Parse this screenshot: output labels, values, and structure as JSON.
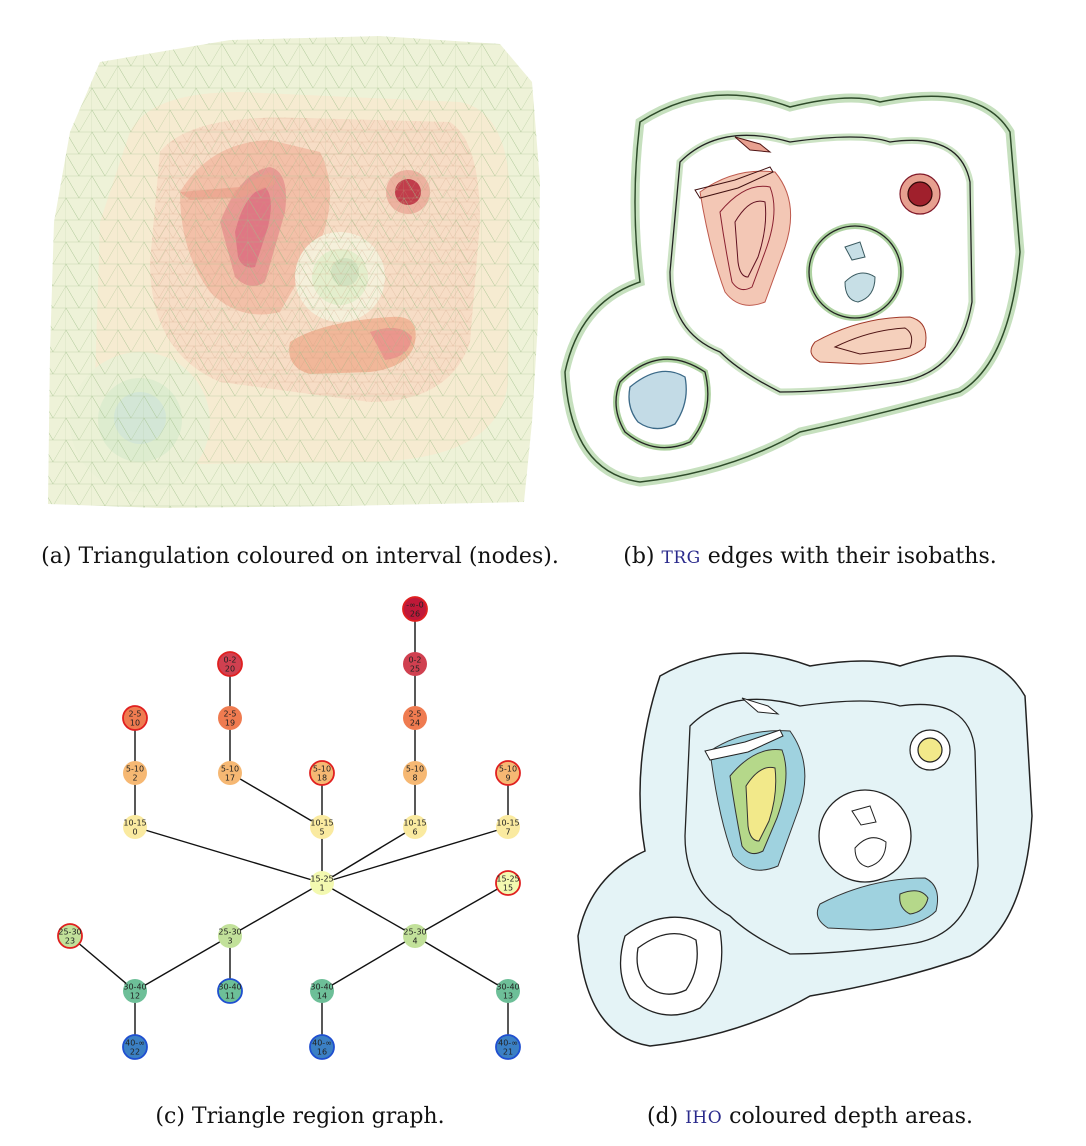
{
  "captions": {
    "a": "(a) Triangulation coloured on interval (nodes).",
    "b_pre": "(b) ",
    "b_sc": "TRG",
    "b_post": " edges with their isobaths.",
    "c": "(c) Triangle region graph.",
    "d_pre": "(d) ",
    "d_sc": "IHO",
    "d_post": " coloured depth areas."
  },
  "colors": {
    "interval_0_2": "#d04050",
    "interval_2_5": "#ef7b50",
    "interval_5_10": "#f6b873",
    "interval_10_15": "#faeaa0",
    "interval_15_25": "#f3f9b0",
    "interval_25_30": "#c2e19a",
    "interval_30_40": "#6dbf98",
    "interval_40_inf": "#3b80c4",
    "interval_neg": "#c01838",
    "leaf_border": "#e02020",
    "deep_border": "#1f4fd0",
    "iho_shallow": "#f2e98a",
    "iho_mid": "#b5d88a",
    "iho_deep": "#9fd2df",
    "iho_base": "#e4f3f6"
  },
  "graph": {
    "nodes": [
      {
        "id": "0",
        "label": "10-15",
        "num": "0"
      },
      {
        "id": "1",
        "label": "15-25",
        "num": "1"
      },
      {
        "id": "2",
        "label": "5-10",
        "num": "2"
      },
      {
        "id": "3",
        "label": "25-30",
        "num": "3"
      },
      {
        "id": "4",
        "label": "25-30",
        "num": "4"
      },
      {
        "id": "5",
        "label": "10-15",
        "num": "5"
      },
      {
        "id": "6",
        "label": "10-15",
        "num": "6"
      },
      {
        "id": "7",
        "label": "10-15",
        "num": "7"
      },
      {
        "id": "8",
        "label": "5-10",
        "num": "8"
      },
      {
        "id": "9",
        "label": "5-10",
        "num": "9"
      },
      {
        "id": "10",
        "label": "2-5",
        "num": "10"
      },
      {
        "id": "11",
        "label": "30-40",
        "num": "11"
      },
      {
        "id": "12",
        "label": "30-40",
        "num": "12"
      },
      {
        "id": "13",
        "label": "30-40",
        "num": "13"
      },
      {
        "id": "14",
        "label": "30-40",
        "num": "14"
      },
      {
        "id": "15",
        "label": "15-25",
        "num": "15"
      },
      {
        "id": "16",
        "label": "40-∞",
        "num": "16"
      },
      {
        "id": "17",
        "label": "5-10",
        "num": "17"
      },
      {
        "id": "18",
        "label": "5-10",
        "num": "18"
      },
      {
        "id": "19",
        "label": "2-5",
        "num": "19"
      },
      {
        "id": "20",
        "label": "0-2",
        "num": "20"
      },
      {
        "id": "21",
        "label": "40-∞",
        "num": "21"
      },
      {
        "id": "22",
        "label": "40-∞",
        "num": "22"
      },
      {
        "id": "23",
        "label": "25-30",
        "num": "23"
      },
      {
        "id": "24",
        "label": "2-5",
        "num": "24"
      },
      {
        "id": "25",
        "label": "0-2",
        "num": "25"
      },
      {
        "id": "26",
        "label": "-∞-0",
        "num": "26"
      }
    ]
  }
}
